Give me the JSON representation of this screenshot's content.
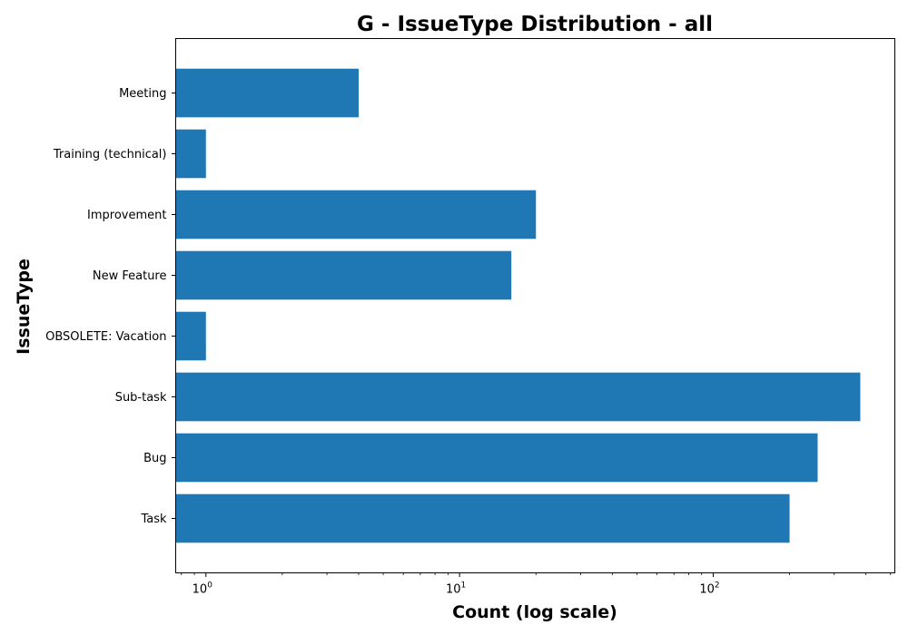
{
  "chart_data": {
    "type": "bar",
    "orientation": "horizontal",
    "title": "G - IssueType Distribution - all",
    "xlabel": "Count (log scale)",
    "ylabel": "IssueType",
    "x_scale": "log",
    "xlim": [
      0.76,
      520
    ],
    "x_ticks": [
      {
        "value": 1,
        "base": "10",
        "exp": "0"
      },
      {
        "value": 10,
        "base": "10",
        "exp": "1"
      },
      {
        "value": 100,
        "base": "10",
        "exp": "2"
      }
    ],
    "categories": [
      "Meeting",
      "Training (technical)",
      "Improvement",
      "New Feature",
      "OBSOLETE: Vacation",
      "Sub-task",
      "Bug",
      "Task"
    ],
    "values": [
      4,
      1,
      20,
      16,
      1,
      380,
      258,
      200
    ],
    "bar_color": "#1f77b4",
    "grid": false
  }
}
